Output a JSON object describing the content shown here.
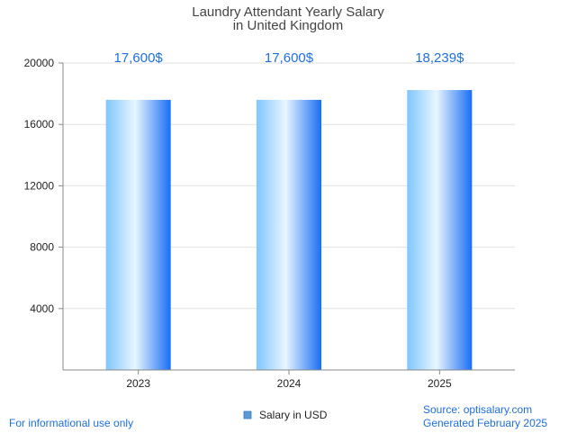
{
  "chart_data": {
    "type": "bar",
    "title": [
      "Laundry Attendant Yearly Salary",
      "in United Kingdom"
    ],
    "categories": [
      "2023",
      "2024",
      "2025"
    ],
    "series": [
      {
        "name": "Salary in USD",
        "values": [
          17600,
          17600,
          18239
        ]
      }
    ],
    "data_labels": [
      "17,600$",
      "17,600$",
      "18,239$"
    ],
    "y_ticks": [
      4000,
      8000,
      12000,
      16000,
      20000
    ],
    "ylim": [
      0,
      20000
    ],
    "xlabel": "",
    "ylabel": "",
    "grid": true,
    "legend_position": "bottom-center"
  },
  "colors": {
    "bar_light": "#e8f6ff",
    "bar_mid": "#7fc6ff",
    "bar_dark": "#1a6ef5",
    "label": "#1e6fe0",
    "grid": "#e2e2e2",
    "axis": "#888888",
    "legend_swatch": "#5b9bd5"
  },
  "footer": {
    "left": "For informational use only",
    "source": "Source: optisalary.com",
    "generated": "Generated February 2025"
  }
}
